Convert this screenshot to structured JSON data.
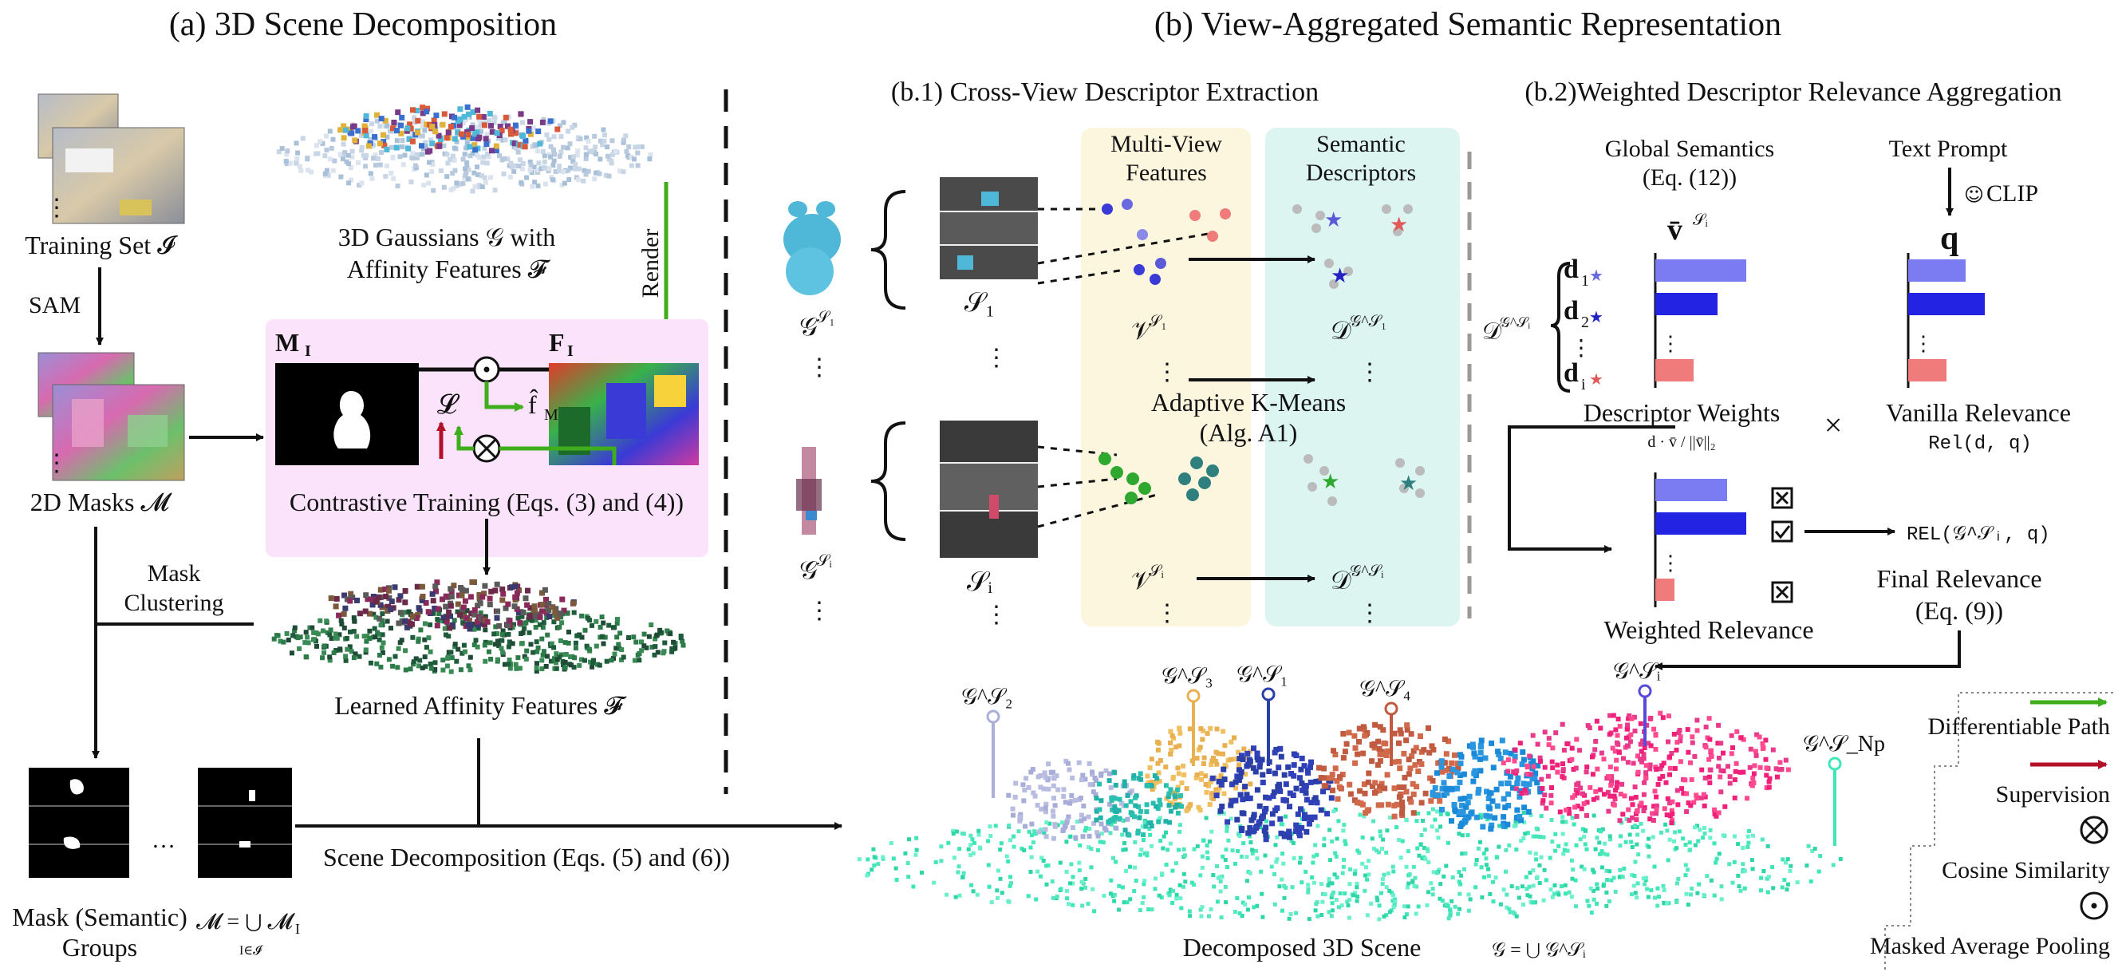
{
  "panel_a": {
    "title": "(a) 3D Scene Decomposition",
    "training_set": "Training Set 𝓘",
    "sam": "SAM",
    "masks_2d": "2D Masks 𝓜",
    "gaussians_line1": "3D Gaussians 𝒢 with",
    "gaussians_line2": "Affinity Features 𝓕",
    "render": "Render",
    "mask_label": "M",
    "mask_sub": "I",
    "feat_label": "F",
    "feat_sub": "I",
    "loss": "𝓛",
    "pooled_feat": "f̂",
    "pooled_sub": "M",
    "contrastive": "Contrastive Training (Eqs. (3) and (4))",
    "mask_clustering_1": "Mask",
    "mask_clustering_2": "Clustering",
    "learned_affinity": "Learned Affinity Features 𝓕",
    "mask_groups_1": "Mask (Semantic)",
    "mask_groups_2": "Groups",
    "mask_union": "𝓜 = ⋃ 𝓜",
    "mask_union_sub": "I",
    "mask_union_under": "I∈𝓘",
    "ellipsis_h": "…",
    "ellipsis_v": "⋮",
    "scene_decomp": "Scene Decomposition (Eqs. (5) and (6))"
  },
  "panel_b": {
    "title": "(b) View-Aggregated Semantic Representation",
    "b1_title": "(b.1) Cross-View Descriptor Extraction",
    "b2_title": "(b.2)Weighted Descriptor Relevance Aggregation",
    "multi_view_1": "Multi-View",
    "multi_view_2": "Features",
    "sem_desc_1": "Semantic",
    "sem_desc_2": "Descriptors",
    "g_s1": "𝒢",
    "s1_sup": "𝒮₁",
    "gi_sup": "𝒮ᵢ",
    "s1": "𝒮₁",
    "si": "𝒮ᵢ",
    "v_s1": "𝒱",
    "d_g": "𝒟",
    "d_sup_1": "𝒢^𝒮₁",
    "d_sup_i": "𝒢^𝒮ᵢ",
    "kmeans_1": "Adaptive K-Means",
    "kmeans_2": "(Alg. A1)",
    "global_sem_1": "Global Semantics",
    "global_sem_2": "(Eq. (12))",
    "v_bar": "v̄",
    "text_prompt": "Text Prompt",
    "clip": "CLIP",
    "q": "q",
    "desc_d": "𝒟",
    "d1": "d",
    "d1_sub": "1",
    "d2": "d",
    "d2_sub": "2",
    "di": "d",
    "di_sub": "i",
    "star": "★",
    "desc_weights": "Descriptor Weights",
    "desc_weights_formula": "d · v̄ / ||v̄||₂",
    "times": "×",
    "vanilla_rel": "Vanilla Relevance",
    "rel_fn": "Rel(d, q)",
    "rel_final": "REL(𝒢^𝒮ᵢ, q)",
    "final_rel_1": "Final Relevance",
    "final_rel_2": "(Eq. (9))",
    "weighted_rel": "Weighted Relevance",
    "decomposed": "Decomposed 3D Scene",
    "decomposed_formula": "𝒢 = ⋃ 𝒢^𝒮ᵢ",
    "scene_labels": [
      "𝒢^𝒮₂",
      "𝒢^𝒮₃",
      "𝒢^𝒮₁",
      "𝒢^𝒮₄",
      "𝒢^𝒮ᵢ",
      "𝒢^𝒮_Np"
    ]
  },
  "chart_data": [
    {
      "type": "bar",
      "title": "Descriptor Weights",
      "categories": [
        "d1",
        "d2",
        "di"
      ],
      "values": [
        0.95,
        0.65,
        0.4
      ]
    },
    {
      "type": "bar",
      "title": "Vanilla Relevance",
      "categories": [
        "d1",
        "d2",
        "di"
      ],
      "values": [
        0.6,
        0.8,
        0.4
      ]
    },
    {
      "type": "bar",
      "title": "Weighted Relevance",
      "categories": [
        "d1",
        "d2",
        "di"
      ],
      "values": [
        0.75,
        0.95,
        0.2
      ]
    }
  ],
  "legend": {
    "diff_path": "Differentiable Path",
    "supervision": "Supervision",
    "cosine": "Cosine Similarity",
    "masked_pool": "Masked Average Pooling"
  },
  "colors": {
    "green": "#3fae1c",
    "red": "#b3112a",
    "blue_light": "#7b7bf2",
    "blue_dark": "#2323e4",
    "pink_bar": "#f07b7b",
    "yellow_bg": "#fdf6df",
    "cyan_bg": "#dcf5f0",
    "pink_bg": "#fbe3fb"
  }
}
